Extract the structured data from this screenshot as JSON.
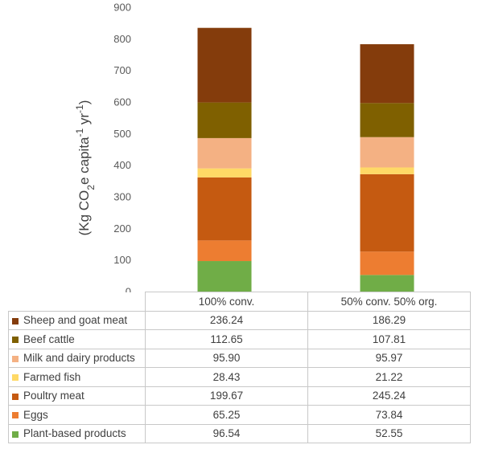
{
  "chart_data": {
    "type": "bar",
    "stacked": true,
    "ylabel_prefix": "(Kg CO",
    "ylabel_sub": "2",
    "ylabel_mid": "e capita",
    "ylabel_sup1": "-1",
    "ylabel_mid2": " yr",
    "ylabel_sup2": "-1",
    "ylabel_suffix": ")",
    "ylim": [
      0,
      900
    ],
    "yticks": [
      "0",
      "100",
      "200",
      "300",
      "400",
      "500",
      "600",
      "700",
      "800",
      "900"
    ],
    "grid": false,
    "categories": [
      "100% conv.",
      "50% conv. 50% org."
    ],
    "series": [
      {
        "name": "Plant-based products",
        "color": "#70ad47",
        "values": [
          96.54,
          52.55
        ],
        "labels": [
          "96.54",
          "52.55"
        ]
      },
      {
        "name": "Eggs",
        "color": "#ed7d31",
        "values": [
          65.25,
          73.84
        ],
        "labels": [
          "65.25",
          "73.84"
        ]
      },
      {
        "name": "Poultry meat",
        "color": "#c55a11",
        "values": [
          199.67,
          245.24
        ],
        "labels": [
          "199.67",
          "245.24"
        ]
      },
      {
        "name": "Farmed fish",
        "color": "#ffd966",
        "values": [
          28.43,
          21.22
        ],
        "labels": [
          "28.43",
          "21.22"
        ]
      },
      {
        "name": "Milk and dairy products",
        "color": "#f4b183",
        "values": [
          95.9,
          95.97
        ],
        "labels": [
          "95.90",
          "95.97"
        ]
      },
      {
        "name": "Beef cattle",
        "color": "#7f6000",
        "values": [
          112.65,
          107.81
        ],
        "labels": [
          "112.65",
          "107.81"
        ]
      },
      {
        "name": "Sheep and goat meat",
        "color": "#843c0c",
        "values": [
          236.24,
          186.29
        ],
        "labels": [
          "236.24",
          "186.29"
        ]
      }
    ]
  }
}
